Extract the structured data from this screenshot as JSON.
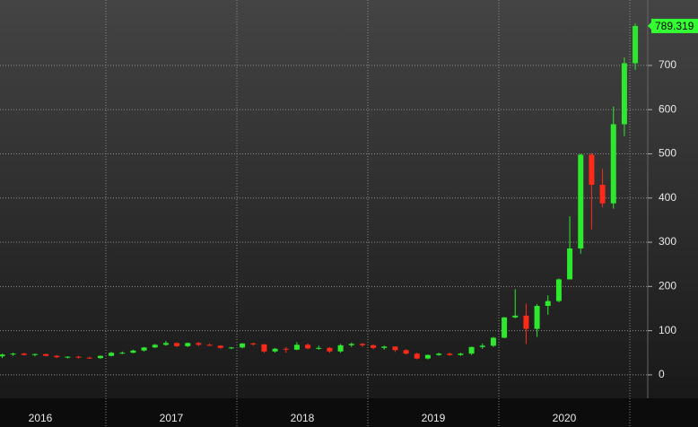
{
  "chart_data": {
    "type": "candlestick",
    "years": [
      "2016",
      "2017",
      "2018",
      "2019",
      "2020"
    ],
    "open": [
      42,
      46,
      48,
      45,
      47,
      43,
      40,
      41,
      39,
      38,
      43,
      50,
      50,
      55,
      62,
      68,
      72,
      65,
      72,
      68,
      66,
      61,
      62,
      71,
      69,
      53,
      59,
      57,
      68,
      60,
      61,
      53,
      67,
      70,
      67,
      61,
      64,
      56,
      48,
      37,
      45,
      48,
      45,
      48,
      63,
      66,
      84,
      130,
      134,
      104,
      156,
      167,
      216,
      286,
      498,
      430,
      388,
      567,
      705
    ],
    "high": [
      48,
      50,
      50,
      48,
      48,
      45,
      42,
      43,
      41,
      44,
      52,
      53,
      57,
      63,
      70,
      77,
      73,
      73,
      74,
      71,
      67,
      63,
      72,
      73,
      70,
      61,
      63,
      74,
      71,
      66,
      63,
      70,
      73,
      72,
      69,
      66,
      64,
      58,
      50,
      46,
      50,
      50,
      50,
      64,
      71,
      86,
      131,
      194,
      161,
      160,
      180,
      218,
      359,
      500,
      502,
      466,
      607,
      718,
      795
    ],
    "low": [
      38,
      43,
      44,
      42,
      42,
      38,
      37,
      37,
      36,
      36,
      42,
      47,
      49,
      53,
      61,
      66,
      63,
      63,
      65,
      65,
      59,
      58,
      60,
      66,
      50,
      50,
      50,
      56,
      58,
      57,
      50,
      50,
      63,
      63,
      58,
      57,
      52,
      46,
      35,
      35,
      43,
      43,
      43,
      45,
      59,
      63,
      83,
      128,
      70,
      86,
      136,
      164,
      216,
      274,
      329,
      379,
      376,
      540,
      690
    ],
    "close": [
      46,
      48,
      45,
      47,
      43,
      40,
      41,
      39,
      38,
      43,
      50,
      50,
      55,
      62,
      68,
      72,
      65,
      72,
      68,
      66,
      61,
      62,
      71,
      69,
      53,
      59,
      57,
      68,
      60,
      61,
      53,
      67,
      70,
      67,
      61,
      64,
      56,
      48,
      37,
      45,
      48,
      45,
      48,
      63,
      66,
      84,
      130,
      134,
      104,
      156,
      167,
      216,
      286,
      498,
      430,
      388,
      567,
      705,
      789.319
    ],
    "up_color": "#2ee82e",
    "down_color": "#ff2a1a",
    "last_color": "#33ff33",
    "ylim": [
      -53,
      848
    ],
    "yticks": [
      0,
      100,
      200,
      300,
      400,
      500,
      600,
      700
    ],
    "grid": true
  }
}
